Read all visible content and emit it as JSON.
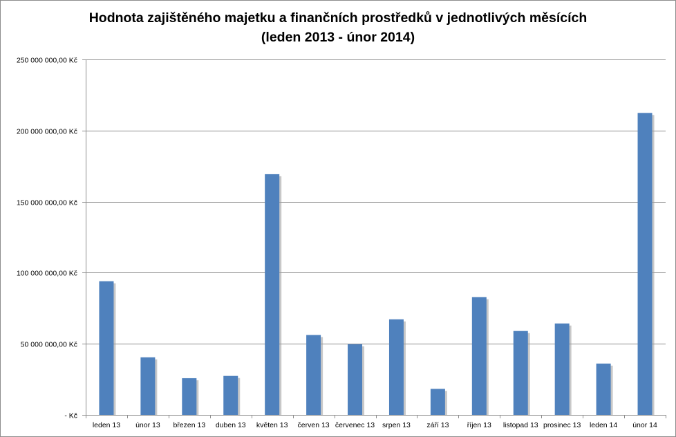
{
  "chart_data": {
    "type": "bar",
    "title_line1": "Hodnota zajištěného majetku a finančních prostředků v jednotlivých měsících",
    "title_line2": "(leden 2013 - únor 2014)",
    "categories": [
      "leden 13",
      "únor 13",
      "březen 13",
      "duben 13",
      "květen 13",
      "červen 13",
      "červenec 13",
      "srpen 13",
      "září 13",
      "říjen 13",
      "listopad 13",
      "prosinec 13",
      "leden 14",
      "únor 14"
    ],
    "values": [
      94000000,
      40500000,
      25800000,
      27400000,
      169300000,
      56200000,
      49700000,
      67200000,
      18300000,
      82800000,
      59000000,
      64300000,
      36100000,
      212400000
    ],
    "ylim": [
      0,
      250000000
    ],
    "yticks": [
      0,
      50000000,
      100000000,
      150000000,
      200000000,
      250000000
    ],
    "ytick_labels": [
      "-   Kč",
      "50 000 000,00 Kč",
      "100 000 000,00 Kč",
      "150 000 000,00 Kč",
      "200 000 000,00 Kč",
      "250 000 000,00 Kč"
    ],
    "xlabel": "",
    "ylabel": "",
    "grid": true,
    "legend": "none",
    "bar_color": "#4f81bd",
    "bar_shadow_color": "#9a9a9a",
    "gridline_color": "#8c8c8c"
  }
}
